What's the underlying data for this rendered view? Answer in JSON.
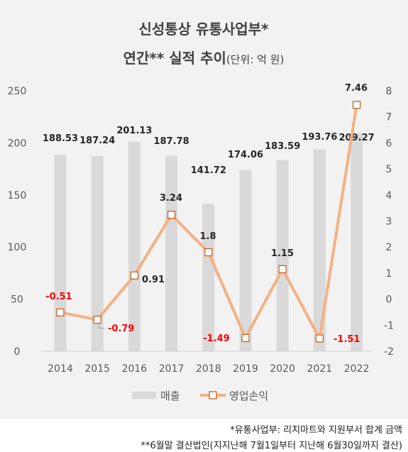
{
  "chart_data": {
    "type": "bar+line",
    "title_line1": "신성통상 유통사업부*",
    "title_line2_bold": "연간** 실적 추이",
    "title_line2_unit": "(단위: 억 원)",
    "categories": [
      "2014",
      "2015",
      "2016",
      "2017",
      "2018",
      "2019",
      "2020",
      "2021",
      "2022"
    ],
    "series": [
      {
        "name": "매출",
        "type": "bar",
        "axis": "left",
        "values": [
          188.53,
          187.24,
          201.13,
          187.78,
          141.72,
          174.06,
          183.59,
          193.76,
          209.27
        ],
        "labels": [
          "188.53",
          "187.24",
          "201.13",
          "187.78",
          "141.72",
          "174.06",
          "183.59",
          "193.76",
          "209.27"
        ]
      },
      {
        "name": "영업손익",
        "type": "line",
        "axis": "right",
        "values": [
          -0.51,
          -0.79,
          0.91,
          3.24,
          1.8,
          -1.49,
          1.15,
          -1.51,
          7.46
        ],
        "labels": [
          "-0.51",
          "-0.79",
          "0.91",
          "3.24",
          "1.8",
          "-1.49",
          "1.15",
          "-1.51",
          "7.46"
        ]
      }
    ],
    "y_left": {
      "ylim": [
        0,
        250
      ],
      "ticks": [
        "0",
        "50",
        "100",
        "150",
        "200",
        "250"
      ]
    },
    "y_right": {
      "ylim": [
        -2,
        8
      ],
      "ticks": [
        "-2",
        "-1",
        "0",
        "1",
        "2",
        "3",
        "4",
        "5",
        "6",
        "7",
        "8"
      ]
    },
    "grid": false,
    "legend_position": "bottom",
    "colors": {
      "bar": "#d9d9d9",
      "line": "#f4b183",
      "marker_stroke": "#c55a11",
      "negative_label": "#ff0000",
      "text": "#262626",
      "axis_text": "#595959",
      "background": "#f2f2f2"
    }
  },
  "footnotes": {
    "note1": "*유통사업부: 리치마트와 지원부서 합계 금액",
    "note2": "**6월말 결산법인(지지난해 7월1일부터 지난해 6월30일까지 결산)"
  }
}
